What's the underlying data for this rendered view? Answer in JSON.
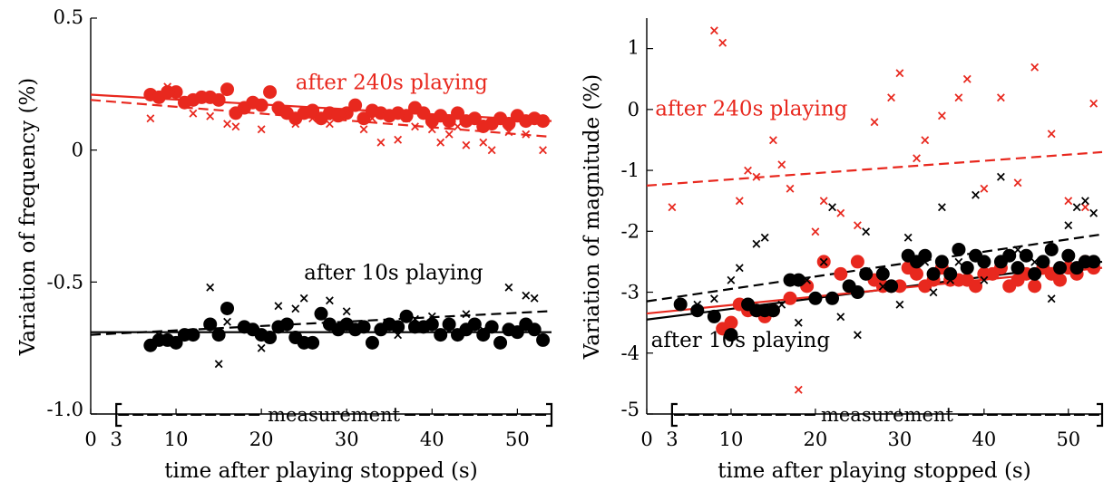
{
  "colors": {
    "red": "#e8281e",
    "black": "#000000"
  },
  "chart_data": [
    {
      "type": "scatter",
      "ylabel": "Variation of frequency (%)",
      "xlabel": "time after playing stopped (s)",
      "xlim": [
        0,
        54
      ],
      "ylim": [
        -1.0,
        0.5
      ],
      "xticks": [
        "0",
        "3",
        "10",
        "20",
        "30",
        "40",
        "50"
      ],
      "xtick_values": [
        0,
        3,
        10,
        20,
        30,
        40,
        50
      ],
      "yticks": [
        "-1.0",
        "-0.5",
        "0",
        "0.5"
      ],
      "ytick_values": [
        -1.0,
        -0.5,
        0,
        0.5
      ],
      "measurement_label": "measurement",
      "measurement_range": [
        3,
        54
      ],
      "annotations": [
        {
          "text": "after 240s playing",
          "color": "red",
          "x": 24,
          "y": 0.23
        },
        {
          "text": "after 10s playing",
          "color": "black",
          "x": 25,
          "y": -0.49
        }
      ],
      "series": [
        {
          "key": "red-dots",
          "marker": "dot",
          "color": "red",
          "x": [
            7,
            8,
            9,
            10,
            11,
            12,
            13,
            14,
            15,
            16,
            17,
            18,
            19,
            20,
            21,
            22,
            23,
            24,
            25,
            26,
            27,
            28,
            29,
            30,
            31,
            32,
            33,
            34,
            35,
            36,
            37,
            38,
            39,
            40,
            41,
            42,
            43,
            44,
            45,
            46,
            47,
            48,
            49,
            50,
            51,
            52,
            53
          ],
          "y": [
            0.21,
            0.2,
            0.22,
            0.22,
            0.18,
            0.19,
            0.2,
            0.2,
            0.19,
            0.23,
            0.14,
            0.16,
            0.18,
            0.17,
            0.22,
            0.16,
            0.14,
            0.12,
            0.14,
            0.15,
            0.12,
            0.14,
            0.13,
            0.14,
            0.17,
            0.12,
            0.15,
            0.14,
            0.13,
            0.14,
            0.13,
            0.16,
            0.14,
            0.11,
            0.13,
            0.11,
            0.14,
            0.11,
            0.12,
            0.09,
            0.1,
            0.12,
            0.1,
            0.13,
            0.11,
            0.12,
            0.11
          ]
        },
        {
          "key": "red-x",
          "marker": "x",
          "color": "red",
          "x": [
            7,
            9,
            10,
            12,
            14,
            16,
            17,
            18,
            20,
            22,
            24,
            26,
            28,
            30,
            32,
            33,
            34,
            36,
            37,
            38,
            40,
            41,
            42,
            43,
            44,
            46,
            47,
            49,
            51,
            53
          ],
          "y": [
            0.12,
            0.24,
            0.22,
            0.14,
            0.13,
            0.1,
            0.09,
            0.16,
            0.08,
            0.15,
            0.1,
            0.12,
            0.1,
            0.14,
            0.08,
            0.12,
            0.03,
            0.04,
            0.12,
            0.09,
            0.08,
            0.03,
            0.06,
            0.09,
            0.02,
            0.03,
            0.0,
            0.07,
            0.06,
            0.0
          ]
        },
        {
          "key": "black-dots",
          "marker": "dot",
          "color": "black",
          "x": [
            7,
            8,
            9,
            10,
            11,
            12,
            14,
            15,
            16,
            18,
            19,
            20,
            21,
            22,
            23,
            24,
            25,
            26,
            27,
            28,
            29,
            30,
            31,
            32,
            33,
            34,
            35,
            36,
            37,
            38,
            39,
            40,
            41,
            42,
            43,
            44,
            45,
            46,
            47,
            48,
            49,
            50,
            51,
            52,
            53
          ],
          "y": [
            -0.74,
            -0.72,
            -0.72,
            -0.73,
            -0.7,
            -0.7,
            -0.66,
            -0.7,
            -0.6,
            -0.67,
            -0.68,
            -0.7,
            -0.71,
            -0.67,
            -0.66,
            -0.71,
            -0.73,
            -0.73,
            -0.62,
            -0.66,
            -0.68,
            -0.66,
            -0.68,
            -0.67,
            -0.73,
            -0.68,
            -0.66,
            -0.67,
            -0.63,
            -0.67,
            -0.67,
            -0.66,
            -0.7,
            -0.66,
            -0.7,
            -0.68,
            -0.66,
            -0.7,
            -0.67,
            -0.73,
            -0.68,
            -0.69,
            -0.66,
            -0.68,
            -0.72
          ]
        },
        {
          "key": "black-x",
          "marker": "x",
          "color": "black",
          "x": [
            8,
            10,
            12,
            14,
            15,
            16,
            18,
            20,
            22,
            24,
            25,
            27,
            28,
            30,
            32,
            34,
            36,
            38,
            40,
            42,
            44,
            46,
            49,
            51,
            52
          ],
          "y": [
            -0.7,
            -0.72,
            -0.69,
            -0.52,
            -0.81,
            -0.65,
            -0.67,
            -0.75,
            -0.59,
            -0.6,
            -0.56,
            -0.62,
            -0.57,
            -0.61,
            -0.66,
            -0.67,
            -0.7,
            -0.64,
            -0.63,
            -0.68,
            -0.62,
            -0.68,
            -0.52,
            -0.55,
            -0.56
          ]
        }
      ],
      "fit_lines": [
        {
          "key": "red-solid",
          "color": "red",
          "style": "solid",
          "x": [
            0,
            54
          ],
          "y": [
            0.21,
            0.11
          ]
        },
        {
          "key": "red-dashed",
          "color": "red",
          "style": "dashed",
          "x": [
            0,
            54
          ],
          "y": [
            0.19,
            0.05
          ]
        },
        {
          "key": "black-solid",
          "color": "black",
          "style": "solid",
          "x": [
            0,
            54
          ],
          "y": [
            -0.69,
            -0.69
          ]
        },
        {
          "key": "black-dashed",
          "color": "black",
          "style": "dashed",
          "x": [
            0,
            54
          ],
          "y": [
            -0.7,
            -0.61
          ]
        }
      ]
    },
    {
      "type": "scatter",
      "ylabel": "Variation of magnitude (%)",
      "xlabel": "time after playing stopped (s)",
      "xlim": [
        0,
        54
      ],
      "ylim": [
        -5,
        1.5
      ],
      "xticks": [
        "0",
        "3",
        "10",
        "20",
        "30",
        "40",
        "50"
      ],
      "xtick_values": [
        0,
        3,
        10,
        20,
        30,
        40,
        50
      ],
      "yticks": [
        "-5",
        "-4",
        "-3",
        "-2",
        "-1",
        "0",
        "1"
      ],
      "ytick_values": [
        -5,
        -4,
        -3,
        -2,
        -1,
        0,
        1
      ],
      "measurement_label": "measurement",
      "measurement_range": [
        3,
        54
      ],
      "annotations": [
        {
          "text": "after 240s playing",
          "color": "red",
          "x": 1,
          "y": -0.1
        },
        {
          "text": "after 10s playing",
          "color": "black",
          "x": 0.5,
          "y": -3.9
        }
      ],
      "series": [
        {
          "key": "red-dots",
          "marker": "dot",
          "color": "red",
          "x": [
            9,
            10,
            11,
            12,
            13,
            14,
            15,
            17,
            19,
            21,
            23,
            25,
            27,
            28,
            29,
            30,
            31,
            32,
            33,
            34,
            35,
            36,
            37,
            38,
            39,
            40,
            41,
            42,
            43,
            44,
            45,
            46,
            47,
            48,
            49,
            50,
            51,
            52,
            53
          ],
          "y": [
            -3.6,
            -3.5,
            -3.2,
            -3.3,
            -3.3,
            -3.4,
            -3.3,
            -3.1,
            -2.9,
            -2.5,
            -2.7,
            -2.5,
            -2.8,
            -2.9,
            -2.9,
            -2.9,
            -2.6,
            -2.7,
            -2.9,
            -2.8,
            -2.6,
            -2.8,
            -2.8,
            -2.8,
            -2.9,
            -2.7,
            -2.7,
            -2.6,
            -2.9,
            -2.8,
            -2.7,
            -2.9,
            -2.6,
            -2.7,
            -2.8,
            -2.6,
            -2.7,
            -2.5,
            -2.6
          ]
        },
        {
          "key": "red-x",
          "marker": "x",
          "color": "red",
          "x": [
            3,
            8,
            9,
            11,
            12,
            13,
            15,
            16,
            17,
            18,
            20,
            21,
            23,
            25,
            27,
            29,
            30,
            32,
            33,
            35,
            37,
            38,
            40,
            42,
            44,
            46,
            48,
            50,
            52,
            53
          ],
          "y": [
            -1.6,
            1.3,
            1.1,
            -1.5,
            -1.0,
            -1.1,
            -0.5,
            -0.9,
            -1.3,
            -4.6,
            -2.0,
            -1.5,
            -1.7,
            -1.9,
            -0.2,
            0.2,
            0.6,
            -0.8,
            -0.5,
            -0.1,
            0.2,
            0.5,
            -1.3,
            0.2,
            -1.2,
            0.7,
            -0.4,
            -1.5,
            -1.6,
            0.1
          ]
        },
        {
          "key": "black-dots",
          "marker": "dot",
          "color": "black",
          "x": [
            4,
            6,
            8,
            10,
            12,
            13,
            14,
            15,
            17,
            18,
            20,
            22,
            24,
            25,
            26,
            28,
            29,
            31,
            32,
            33,
            34,
            35,
            36,
            37,
            38,
            39,
            40,
            42,
            43,
            44,
            45,
            46,
            47,
            48,
            49,
            50,
            51,
            52,
            53
          ],
          "y": [
            -3.2,
            -3.3,
            -3.4,
            -3.7,
            -3.2,
            -3.3,
            -3.3,
            -3.3,
            -2.8,
            -2.8,
            -3.1,
            -3.1,
            -2.9,
            -3.0,
            -2.7,
            -2.7,
            -2.9,
            -2.4,
            -2.5,
            -2.4,
            -2.7,
            -2.5,
            -2.7,
            -2.3,
            -2.6,
            -2.4,
            -2.5,
            -2.5,
            -2.4,
            -2.6,
            -2.4,
            -2.7,
            -2.5,
            -2.3,
            -2.6,
            -2.4,
            -2.6,
            -2.5,
            -2.5
          ]
        },
        {
          "key": "black-x",
          "marker": "x",
          "color": "black",
          "x": [
            6,
            8,
            10,
            11,
            13,
            14,
            16,
            18,
            19,
            21,
            22,
            23,
            25,
            26,
            28,
            30,
            31,
            33,
            34,
            35,
            36,
            37,
            39,
            40,
            42,
            44,
            46,
            48,
            50,
            51,
            52,
            53
          ],
          "y": [
            -3.2,
            -3.1,
            -2.8,
            -2.6,
            -2.2,
            -2.1,
            -3.2,
            -3.5,
            -2.8,
            -2.5,
            -1.6,
            -3.4,
            -3.7,
            -2.0,
            -2.9,
            -3.2,
            -2.1,
            -2.5,
            -3.0,
            -1.6,
            -2.8,
            -2.5,
            -1.4,
            -2.8,
            -1.1,
            -2.3,
            -2.5,
            -3.1,
            -1.9,
            -1.6,
            -1.5,
            -1.7
          ]
        }
      ],
      "fit_lines": [
        {
          "key": "red-dashed",
          "color": "red",
          "style": "dashed",
          "x": [
            0,
            54
          ],
          "y": [
            -1.25,
            -0.7
          ]
        },
        {
          "key": "black-dashed",
          "color": "black",
          "style": "dashed",
          "x": [
            0,
            54
          ],
          "y": [
            -3.15,
            -2.05
          ]
        },
        {
          "key": "black-solid",
          "color": "black",
          "style": "solid",
          "x": [
            0,
            54
          ],
          "y": [
            -3.45,
            -2.5
          ]
        },
        {
          "key": "red-solid",
          "color": "red",
          "style": "solid",
          "x": [
            0,
            54
          ],
          "y": [
            -3.35,
            -2.6
          ]
        }
      ]
    }
  ]
}
